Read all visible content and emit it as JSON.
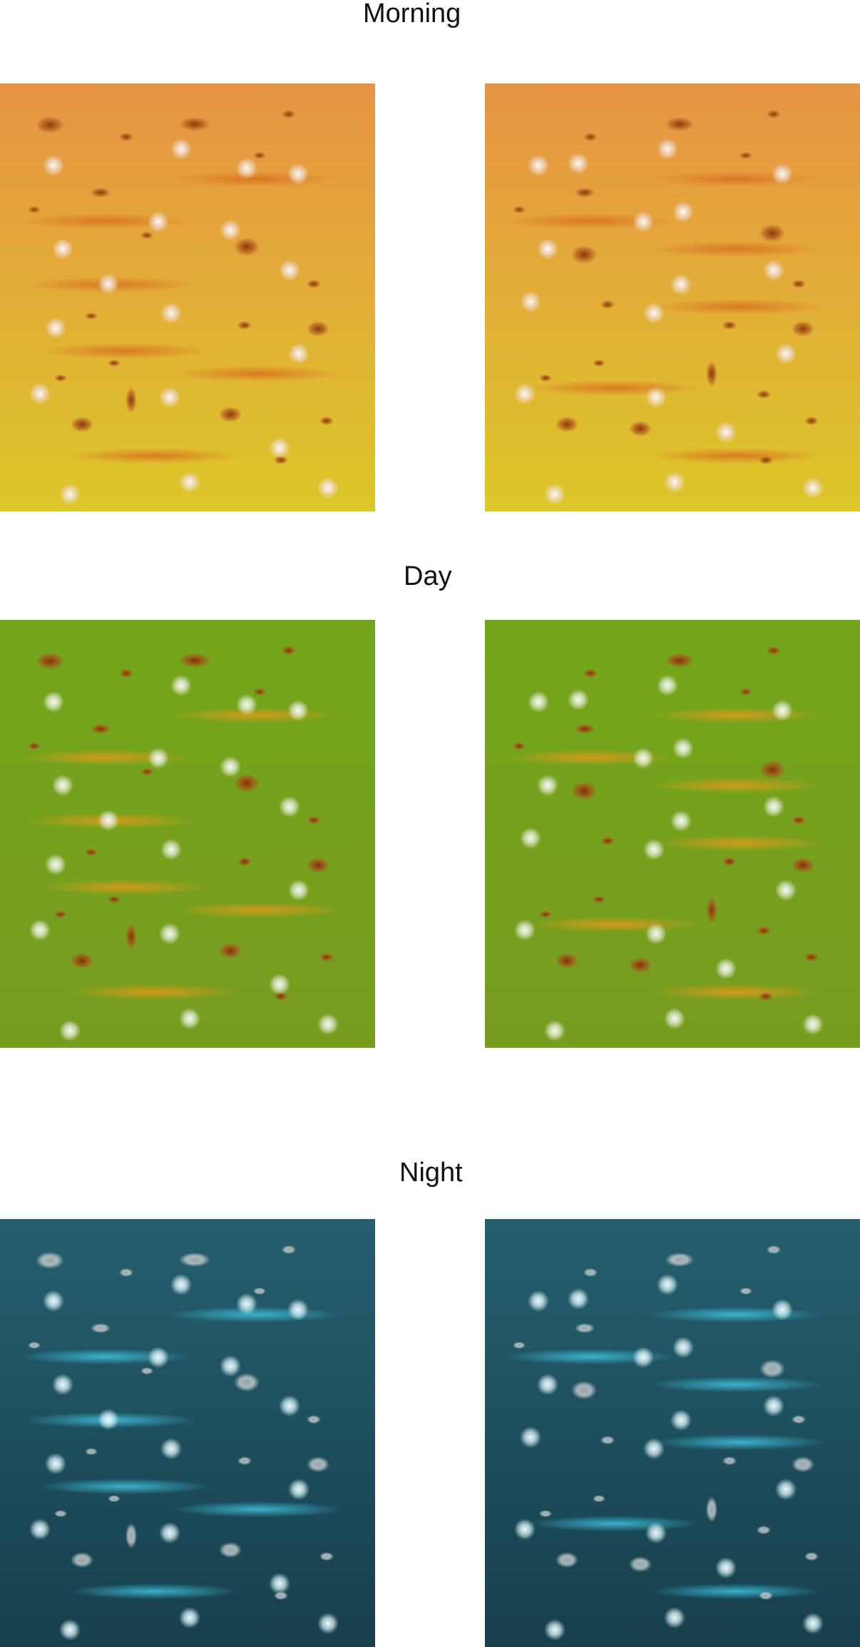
{
  "sections": [
    {
      "title": "Morning",
      "colors": {
        "top": "#e89444",
        "bottom": "#dcc72a",
        "dot": "#8a3808",
        "dotMid": "#b45e20",
        "halo": "#f0ddd0",
        "haloCore": "#ffffff",
        "streak": "#d9701f"
      },
      "panels": [
        "left-panel",
        "right-panel"
      ]
    },
    {
      "title": "Day",
      "colors": {
        "top": "#73a61a",
        "bottom": "#789c20",
        "dot": "#7a3206",
        "dotMid": "#a5521a",
        "halo": "#e4ecd6",
        "haloCore": "#ffffff",
        "streak": "#e29a1c"
      },
      "panels": [
        "left-panel",
        "right-panel"
      ]
    },
    {
      "title": "Night",
      "colors": {
        "top": "#255f6e",
        "bottom": "#173f4d",
        "dot": "#9aa4a6",
        "dotMid": "#c7cfd0",
        "halo": "#d3f1f6",
        "haloCore": "#ffffff",
        "streak": "#3fc3de"
      },
      "panels": [
        "left-panel",
        "right-panel"
      ]
    }
  ]
}
